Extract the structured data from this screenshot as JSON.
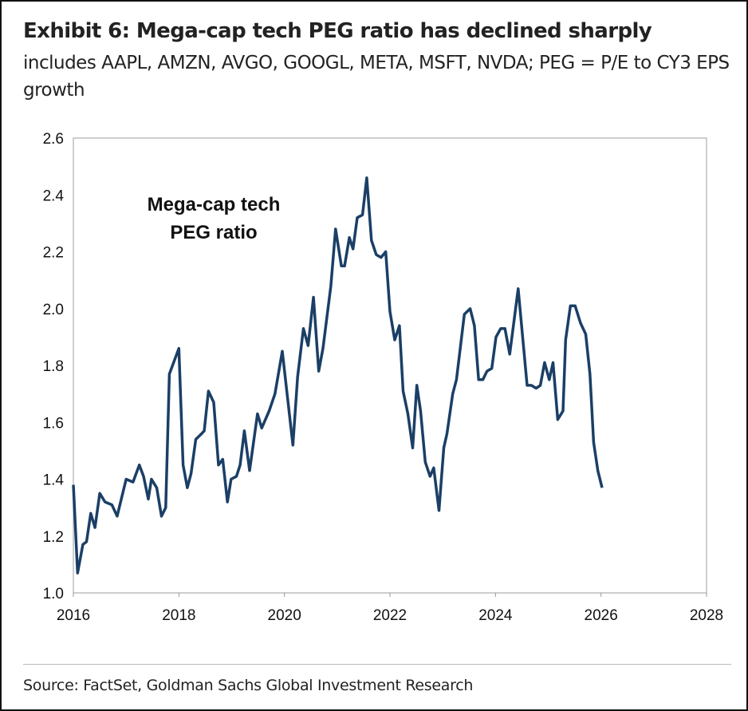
{
  "header": {
    "title": "Exhibit 6: Mega-cap tech PEG ratio has declined sharply",
    "subtitle": "includes AAPL, AMZN, AVGO, GOOGL, META, MSFT, NVDA; PEG = P/E to CY3 EPS growth"
  },
  "footer": {
    "source": "Source: FactSet, Goldman Sachs Global Investment Research"
  },
  "chart_data": {
    "type": "line",
    "title": "",
    "xlabel": "",
    "ylabel": "",
    "xlim": [
      2016,
      2028
    ],
    "ylim": [
      1.0,
      2.6
    ],
    "xticks": [
      "2016",
      "2018",
      "2020",
      "2022",
      "2024",
      "2026",
      "2028"
    ],
    "yticks": [
      "1.0",
      "1.2",
      "1.4",
      "1.6",
      "1.8",
      "2.0",
      "2.2",
      "2.4",
      "2.6"
    ],
    "grid": false,
    "annotation": [
      "Mega-cap tech",
      "PEG ratio"
    ],
    "line_color": "#1b3f66",
    "series": [
      {
        "x": [
          2016.0,
          2016.08,
          2016.18,
          2016.25,
          2016.33,
          2016.41,
          2016.5,
          2016.6,
          2016.73,
          2016.83,
          2017.0,
          2017.13,
          2017.25,
          2017.33,
          2017.42,
          2017.48,
          2017.58,
          2017.67,
          2017.75,
          2017.82,
          2018.0,
          2018.08,
          2018.16,
          2018.23,
          2018.32,
          2018.43,
          2018.48,
          2018.56,
          2018.66,
          2018.75,
          2018.83,
          2018.92,
          2018.99,
          2019.09,
          2019.16,
          2019.24,
          2019.34,
          2019.49,
          2019.57,
          2019.71,
          2019.82,
          2019.96,
          2020.16,
          2020.25,
          2020.36,
          2020.45,
          2020.55,
          2020.65,
          2020.73,
          2020.88,
          2020.97,
          2021.08,
          2021.14,
          2021.23,
          2021.3,
          2021.38,
          2021.48,
          2021.56,
          2021.65,
          2021.74,
          2021.83,
          2021.92,
          2022.0,
          2022.09,
          2022.18,
          2022.25,
          2022.34,
          2022.43,
          2022.51,
          2022.58,
          2022.67,
          2022.76,
          2022.83,
          2022.93,
          2023.02,
          2023.08,
          2023.19,
          2023.26,
          2023.41,
          2023.52,
          2023.6,
          2023.68,
          2023.76,
          2023.84,
          2023.93,
          2024.01,
          2024.1,
          2024.18,
          2024.27,
          2024.43,
          2024.6,
          2024.68,
          2024.77,
          2024.85,
          2024.93,
          2025.02,
          2025.09,
          2025.18,
          2025.28,
          2025.33,
          2025.42,
          2025.51,
          2025.61,
          2025.71,
          2025.79,
          2025.86,
          2025.94,
          2026.02
        ],
        "y": [
          1.38,
          1.07,
          1.17,
          1.18,
          1.28,
          1.23,
          1.35,
          1.32,
          1.31,
          1.27,
          1.4,
          1.39,
          1.45,
          1.41,
          1.33,
          1.4,
          1.37,
          1.27,
          1.3,
          1.77,
          1.86,
          1.45,
          1.37,
          1.42,
          1.54,
          1.56,
          1.57,
          1.71,
          1.67,
          1.45,
          1.47,
          1.32,
          1.4,
          1.41,
          1.45,
          1.57,
          1.43,
          1.63,
          1.58,
          1.64,
          1.7,
          1.85,
          1.52,
          1.76,
          1.93,
          1.87,
          2.04,
          1.78,
          1.86,
          2.08,
          2.28,
          2.15,
          2.15,
          2.25,
          2.21,
          2.32,
          2.33,
          2.46,
          2.24,
          2.19,
          2.18,
          2.2,
          1.99,
          1.89,
          1.94,
          1.71,
          1.63,
          1.51,
          1.73,
          1.64,
          1.46,
          1.41,
          1.44,
          1.29,
          1.51,
          1.56,
          1.7,
          1.75,
          1.98,
          2.0,
          1.94,
          1.75,
          1.75,
          1.78,
          1.79,
          1.9,
          1.93,
          1.93,
          1.84,
          2.07,
          1.73,
          1.73,
          1.72,
          1.73,
          1.81,
          1.75,
          1.81,
          1.61,
          1.64,
          1.89,
          2.01,
          2.01,
          1.95,
          1.91,
          1.77,
          1.53,
          1.43,
          1.37
        ]
      }
    ]
  }
}
